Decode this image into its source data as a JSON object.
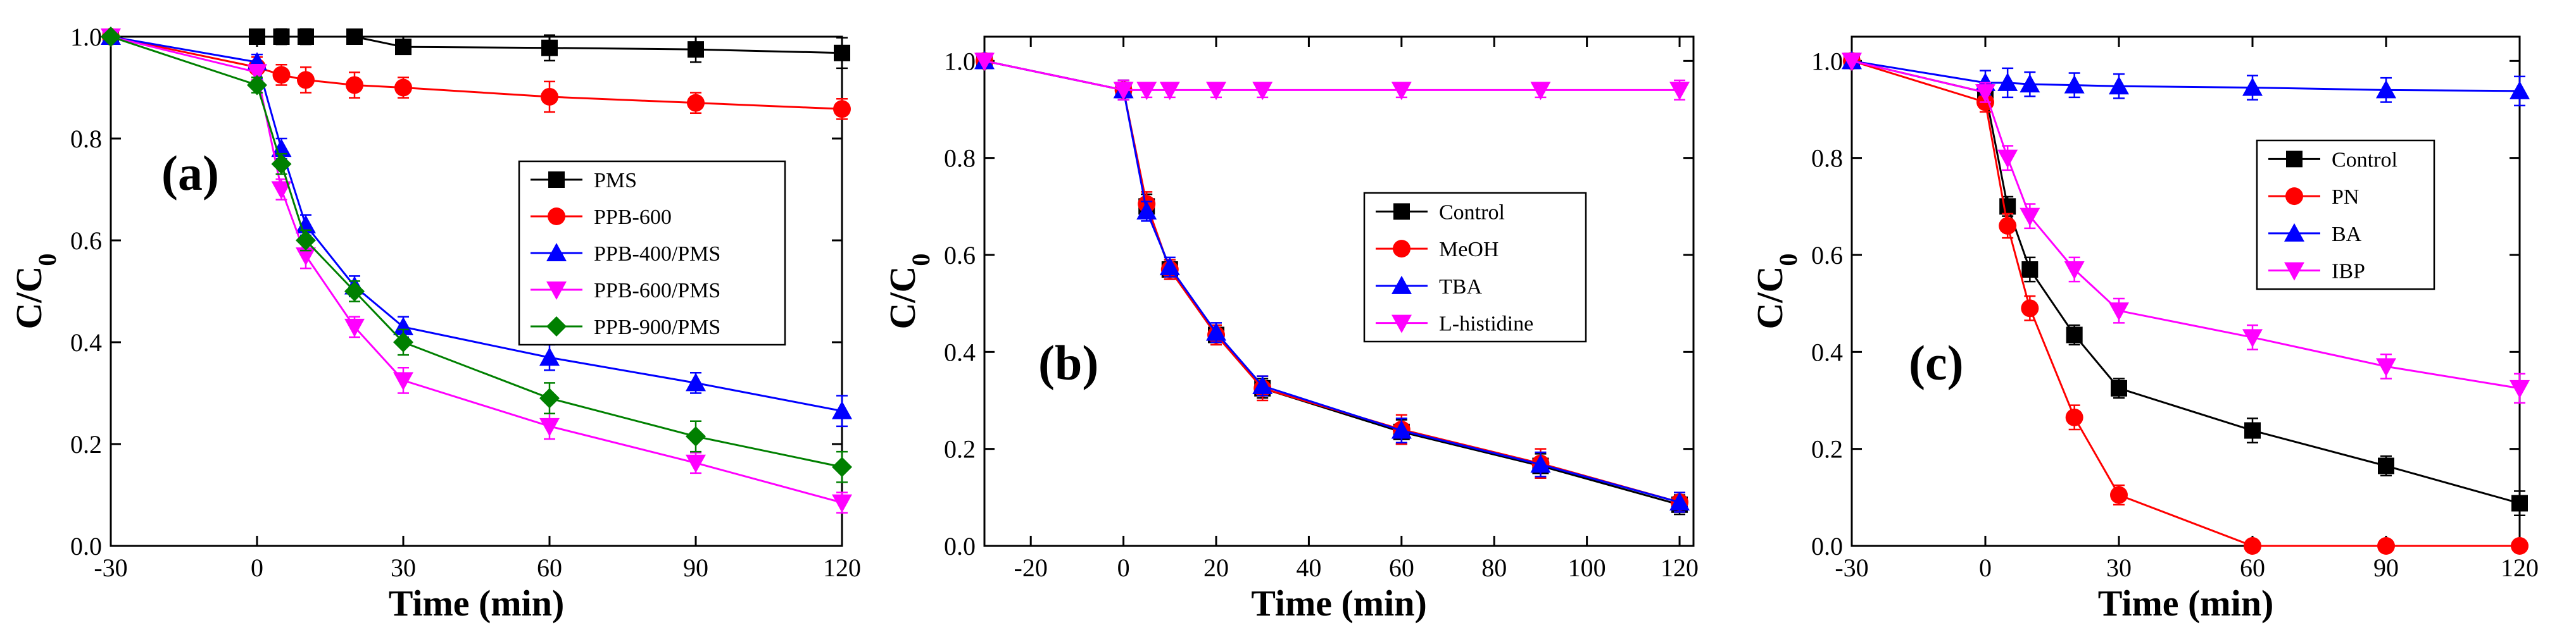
{
  "colors": {
    "black": "#000000",
    "red": "#ff0000",
    "blue": "#0000ff",
    "magenta": "#ff00ff",
    "green": "#008000"
  },
  "chart_data": [
    {
      "type": "line",
      "panel": "(a)",
      "xlabel": "Time (min)",
      "ylabel": "C/C",
      "ylabel_sub": "0",
      "xlim": [
        -30,
        120
      ],
      "ylim": [
        0.0,
        1.0
      ],
      "xticks": [
        -30,
        0,
        30,
        60,
        90,
        120
      ],
      "xtick_labels": [
        "-30",
        "0",
        "30",
        "60",
        "90",
        "120"
      ],
      "yticks": [
        0.0,
        0.2,
        0.4,
        0.6,
        0.8,
        1.0
      ],
      "ytick_labels": [
        "0.0",
        "0.2",
        "0.4",
        "0.6",
        "0.8",
        "1.0"
      ],
      "legend_position": "center-right",
      "series": [
        {
          "name": "PMS",
          "color": "#000000",
          "marker": "square",
          "x": [
            -30,
            0,
            5,
            10,
            20,
            30,
            60,
            90,
            120
          ],
          "values": [
            1.0,
            1.0,
            1.0,
            1.0,
            1.0,
            0.98,
            0.978,
            0.975,
            0.968
          ],
          "err": [
            0,
            0.012,
            0.015,
            0.015,
            0.012,
            0.01,
            0.025,
            0.025,
            0.03
          ]
        },
        {
          "name": "PPB-600",
          "color": "#ff0000",
          "marker": "circle",
          "x": [
            -30,
            0,
            5,
            10,
            20,
            30,
            60,
            90,
            120
          ],
          "values": [
            1.0,
            0.94,
            0.925,
            0.915,
            0.905,
            0.9,
            0.882,
            0.87,
            0.858
          ],
          "err": [
            0,
            0.02,
            0.02,
            0.025,
            0.025,
            0.02,
            0.03,
            0.02,
            0.02
          ]
        },
        {
          "name": "PPB-400/PMS",
          "color": "#0000ff",
          "marker": "triangle-up",
          "x": [
            -30,
            0,
            5,
            10,
            20,
            30,
            60,
            90,
            120
          ],
          "values": [
            1.0,
            0.95,
            0.78,
            0.63,
            0.51,
            0.43,
            0.37,
            0.32,
            0.265
          ],
          "err": [
            0,
            0.015,
            0.02,
            0.02,
            0.02,
            0.02,
            0.025,
            0.02,
            0.03
          ]
        },
        {
          "name": "PPB-600/PMS",
          "color": "#ff00ff",
          "marker": "triangle-down",
          "x": [
            -30,
            0,
            5,
            10,
            20,
            30,
            60,
            90,
            120
          ],
          "values": [
            1.0,
            0.93,
            0.7,
            0.57,
            0.43,
            0.325,
            0.235,
            0.163,
            0.085
          ],
          "err": [
            0,
            0.015,
            0.02,
            0.025,
            0.02,
            0.025,
            0.025,
            0.02,
            0.02
          ]
        },
        {
          "name": "PPB-900/PMS",
          "color": "#008000",
          "marker": "diamond",
          "x": [
            -30,
            0,
            5,
            10,
            20,
            30,
            60,
            90,
            120
          ],
          "values": [
            1.0,
            0.905,
            0.75,
            0.6,
            0.5,
            0.4,
            0.29,
            0.215,
            0.155
          ],
          "err": [
            0,
            0.015,
            0.02,
            0.02,
            0.02,
            0.025,
            0.03,
            0.03,
            0.03
          ]
        }
      ]
    },
    {
      "type": "line",
      "panel": "(b)",
      "xlabel": "Time (min)",
      "ylabel": "C/C",
      "ylabel_sub": "0",
      "xlim": [
        -30,
        123
      ],
      "ylim": [
        0.0,
        1.05
      ],
      "xticks": [
        -20,
        0,
        20,
        40,
        60,
        80,
        100,
        120
      ],
      "xtick_labels": [
        "-20",
        "0",
        "20",
        "40",
        "60",
        "80",
        "100",
        "120"
      ],
      "yticks": [
        0.0,
        0.2,
        0.4,
        0.6,
        0.8,
        1.0
      ],
      "ytick_labels": [
        "0.0",
        "0.2",
        "0.4",
        "0.6",
        "0.8",
        "1.0"
      ],
      "legend_position": "center-right",
      "series": [
        {
          "name": "Control",
          "color": "#000000",
          "marker": "square",
          "x": [
            -30,
            0,
            5,
            10,
            20,
            30,
            60,
            90,
            120
          ],
          "values": [
            1.0,
            0.94,
            0.7,
            0.57,
            0.435,
            0.325,
            0.235,
            0.165,
            0.085
          ],
          "err": [
            0,
            0.02,
            0.025,
            0.02,
            0.02,
            0.02,
            0.025,
            0.025,
            0.02
          ]
        },
        {
          "name": "MeOH",
          "color": "#ff0000",
          "marker": "circle",
          "x": [
            -30,
            0,
            5,
            10,
            20,
            30,
            60,
            90,
            120
          ],
          "values": [
            1.0,
            0.94,
            0.705,
            0.57,
            0.435,
            0.325,
            0.24,
            0.17,
            0.09
          ],
          "err": [
            0,
            0.02,
            0.025,
            0.02,
            0.02,
            0.025,
            0.03,
            0.03,
            0.02
          ]
        },
        {
          "name": "TBA",
          "color": "#0000ff",
          "marker": "triangle-up",
          "x": [
            -30,
            0,
            5,
            10,
            20,
            30,
            60,
            90,
            120
          ],
          "values": [
            1.0,
            0.94,
            0.69,
            0.575,
            0.44,
            0.33,
            0.238,
            0.168,
            0.09
          ],
          "err": [
            0,
            0.02,
            0.02,
            0.02,
            0.02,
            0.02,
            0.025,
            0.025,
            0.02
          ]
        },
        {
          "name": "L-histidine",
          "color": "#ff00ff",
          "marker": "triangle-down",
          "x": [
            -30,
            0,
            5,
            10,
            20,
            30,
            60,
            90,
            120
          ],
          "values": [
            1.0,
            0.94,
            0.94,
            0.94,
            0.94,
            0.94,
            0.94,
            0.94,
            0.94
          ],
          "err": [
            0,
            0.02,
            0.015,
            0.015,
            0.015,
            0.015,
            0.015,
            0.015,
            0.02
          ]
        }
      ]
    },
    {
      "type": "line",
      "panel": "(c)",
      "xlabel": "Time (min)",
      "ylabel": "C/C",
      "ylabel_sub": "0",
      "xlim": [
        -30,
        120
      ],
      "ylim": [
        0.0,
        1.05
      ],
      "xticks": [
        -30,
        0,
        30,
        60,
        90,
        120
      ],
      "xtick_labels": [
        "-30",
        "0",
        "30",
        "60",
        "90",
        "120"
      ],
      "yticks": [
        0.0,
        0.2,
        0.4,
        0.6,
        0.8,
        1.0
      ],
      "ytick_labels": [
        "0.0",
        "0.2",
        "0.4",
        "0.6",
        "0.8",
        "1.0"
      ],
      "legend_position": "top-right",
      "series": [
        {
          "name": "Control",
          "color": "#000000",
          "marker": "square",
          "x": [
            -30,
            0,
            5,
            10,
            20,
            30,
            60,
            90,
            120
          ],
          "values": [
            1.0,
            0.935,
            0.7,
            0.57,
            0.435,
            0.325,
            0.238,
            0.165,
            0.088
          ],
          "err": [
            0,
            0.02,
            0.02,
            0.025,
            0.02,
            0.02,
            0.025,
            0.02,
            0.025
          ]
        },
        {
          "name": "PN",
          "color": "#ff0000",
          "marker": "circle",
          "x": [
            -30,
            0,
            5,
            10,
            20,
            30,
            60,
            90,
            120
          ],
          "values": [
            1.0,
            0.915,
            0.66,
            0.49,
            0.265,
            0.105,
            0.0,
            0.0,
            0.0
          ],
          "err": [
            0,
            0.02,
            0.025,
            0.025,
            0.025,
            0.02,
            0.0,
            0.0,
            0.0
          ]
        },
        {
          "name": "BA",
          "color": "#0000ff",
          "marker": "triangle-up",
          "x": [
            -30,
            0,
            5,
            10,
            20,
            30,
            60,
            90,
            120
          ],
          "values": [
            1.0,
            0.955,
            0.955,
            0.952,
            0.95,
            0.948,
            0.945,
            0.94,
            0.938
          ],
          "err": [
            0,
            0.025,
            0.03,
            0.025,
            0.025,
            0.025,
            0.025,
            0.025,
            0.03
          ]
        },
        {
          "name": "IBP",
          "color": "#ff00ff",
          "marker": "triangle-down",
          "x": [
            -30,
            0,
            5,
            10,
            20,
            30,
            60,
            90,
            120
          ],
          "values": [
            1.0,
            0.935,
            0.8,
            0.68,
            0.57,
            0.485,
            0.43,
            0.37,
            0.325
          ],
          "err": [
            0,
            0.02,
            0.025,
            0.025,
            0.025,
            0.025,
            0.025,
            0.025,
            0.03
          ]
        }
      ]
    }
  ]
}
